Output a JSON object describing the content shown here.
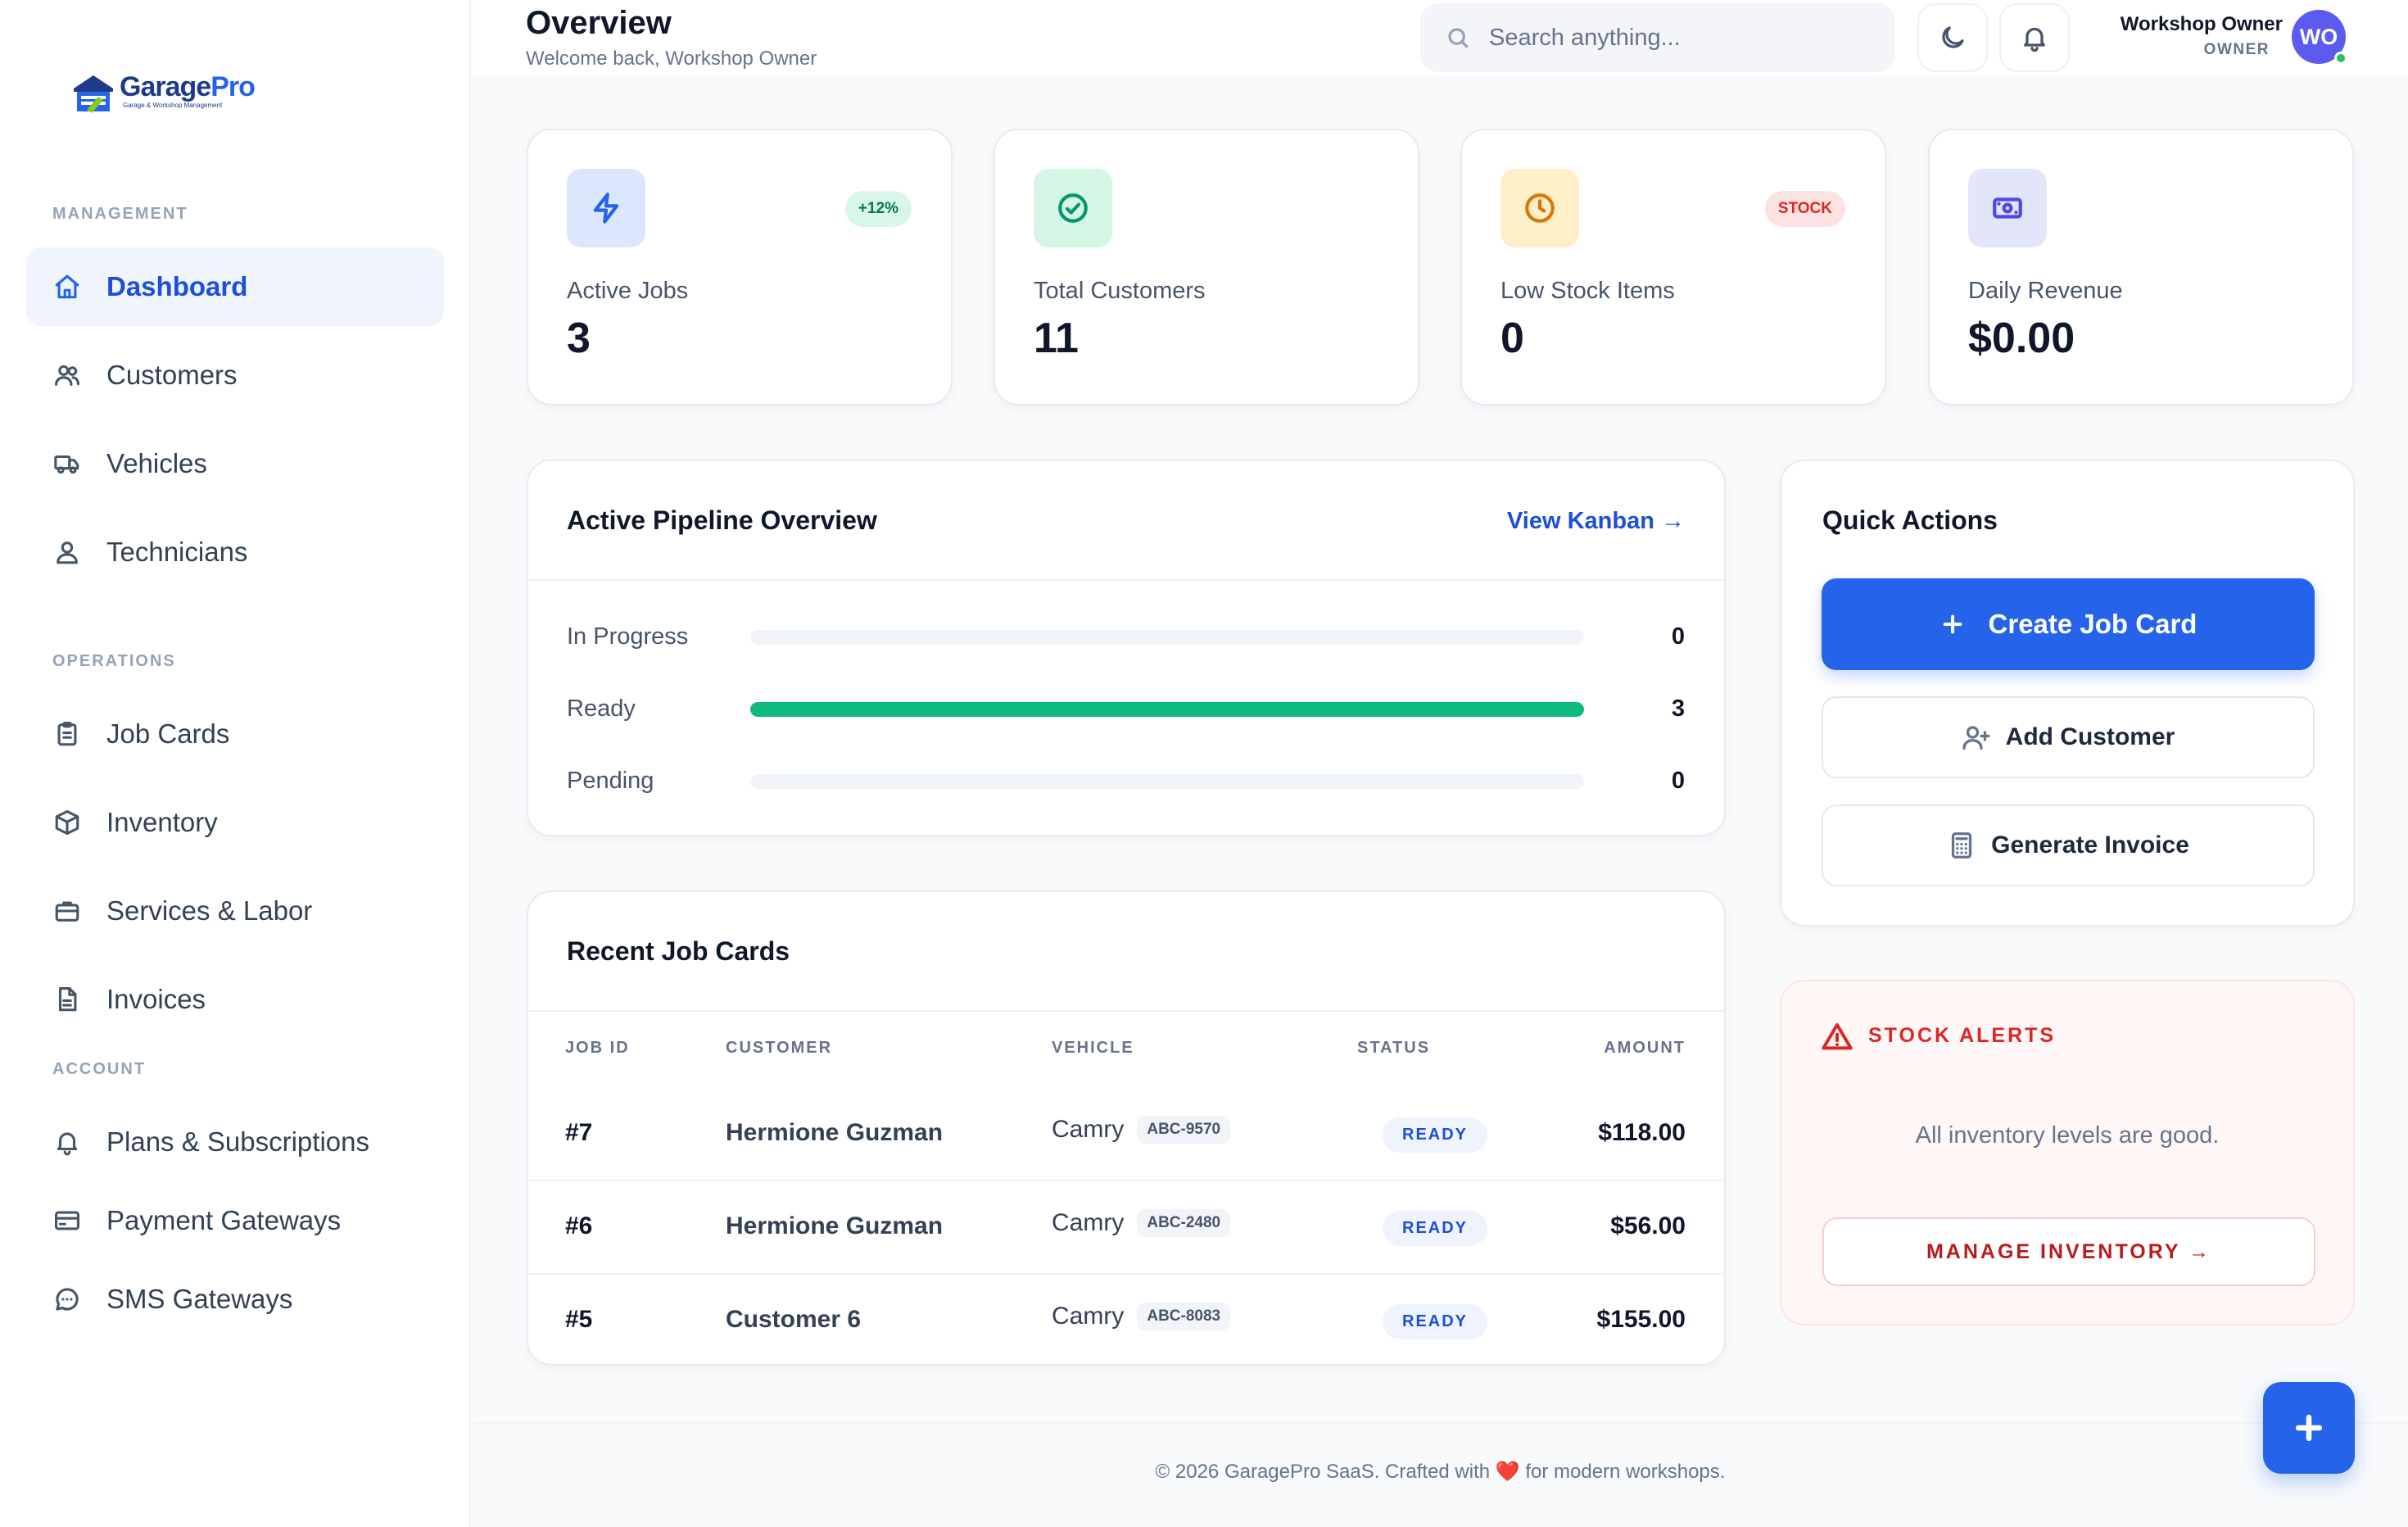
{
  "app": {
    "logo_name_a": "Garage",
    "logo_name_b": "Pro",
    "logo_tagline": "Garage & Workshop Management",
    "brand_color": "#2563eb"
  },
  "sidebar": {
    "sections": [
      {
        "label": "MANAGEMENT"
      },
      {
        "label": "OPERATIONS"
      },
      {
        "label": "ACCOUNT"
      }
    ],
    "items": [
      {
        "label": "Dashboard",
        "icon": "home-icon",
        "active": true
      },
      {
        "label": "Customers",
        "icon": "users-icon"
      },
      {
        "label": "Vehicles",
        "icon": "truck-icon"
      },
      {
        "label": "Technicians",
        "icon": "user-icon"
      },
      {
        "label": "Job Cards",
        "icon": "clipboard-icon"
      },
      {
        "label": "Inventory",
        "icon": "box-icon"
      },
      {
        "label": "Services & Labor",
        "icon": "briefcase-icon"
      },
      {
        "label": "Invoices",
        "icon": "file-icon"
      },
      {
        "label": "Plans & Subscriptions",
        "icon": "bell-icon"
      },
      {
        "label": "Payment Gateways",
        "icon": "credit-card-icon"
      },
      {
        "label": "SMS Gateways",
        "icon": "message-icon"
      }
    ]
  },
  "header": {
    "title": "Overview",
    "subtitle": "Welcome back, Workshop Owner",
    "search_placeholder": "Search anything...",
    "user_name": "Workshop Owner",
    "user_role": "OWNER",
    "avatar_initials": "WO"
  },
  "stats": [
    {
      "label": "Active Jobs",
      "value": "3",
      "badge": "+12%",
      "icon": "bolt-icon"
    },
    {
      "label": "Total Customers",
      "value": "11",
      "icon": "check-circle-icon"
    },
    {
      "label": "Low Stock Items",
      "value": "0",
      "badge": "STOCK",
      "icon": "clock-icon"
    },
    {
      "label": "Daily Revenue",
      "value": "$0.00",
      "icon": "money-icon"
    }
  ],
  "pipeline": {
    "title": "Active Pipeline Overview",
    "link": "View Kanban →",
    "rows": [
      {
        "label": "In Progress",
        "count": "0",
        "fill": 0
      },
      {
        "label": "Ready",
        "count": "3",
        "fill": 1
      },
      {
        "label": "Pending",
        "count": "0",
        "fill": 0
      }
    ]
  },
  "recent_jobs": {
    "title": "Recent Job Cards",
    "columns": [
      "JOB ID",
      "CUSTOMER",
      "VEHICLE",
      "STATUS",
      "AMOUNT"
    ],
    "rows": [
      {
        "id": "#7",
        "customer": "Hermione Guzman",
        "vehicle": "Camry",
        "plate": "ABC-9570",
        "status": "READY",
        "amount": "$118.00"
      },
      {
        "id": "#6",
        "customer": "Hermione Guzman",
        "vehicle": "Camry",
        "plate": "ABC-2480",
        "status": "READY",
        "amount": "$56.00"
      },
      {
        "id": "#5",
        "customer": "Customer 6",
        "vehicle": "Camry",
        "plate": "ABC-8083",
        "status": "READY",
        "amount": "$155.00"
      }
    ]
  },
  "quick_actions": {
    "title": "Quick Actions",
    "create_job": "Create Job Card",
    "add_customer": "Add Customer",
    "generate_invoice": "Generate Invoice"
  },
  "stock_alerts": {
    "title": "STOCK ALERTS",
    "message": "All inventory levels are good.",
    "button": "MANAGE INVENTORY →"
  },
  "footer": {
    "text_before": "© 2026 GaragePro SaaS. Crafted with ",
    "heart": "❤️",
    "text_after": " for modern workshops."
  }
}
